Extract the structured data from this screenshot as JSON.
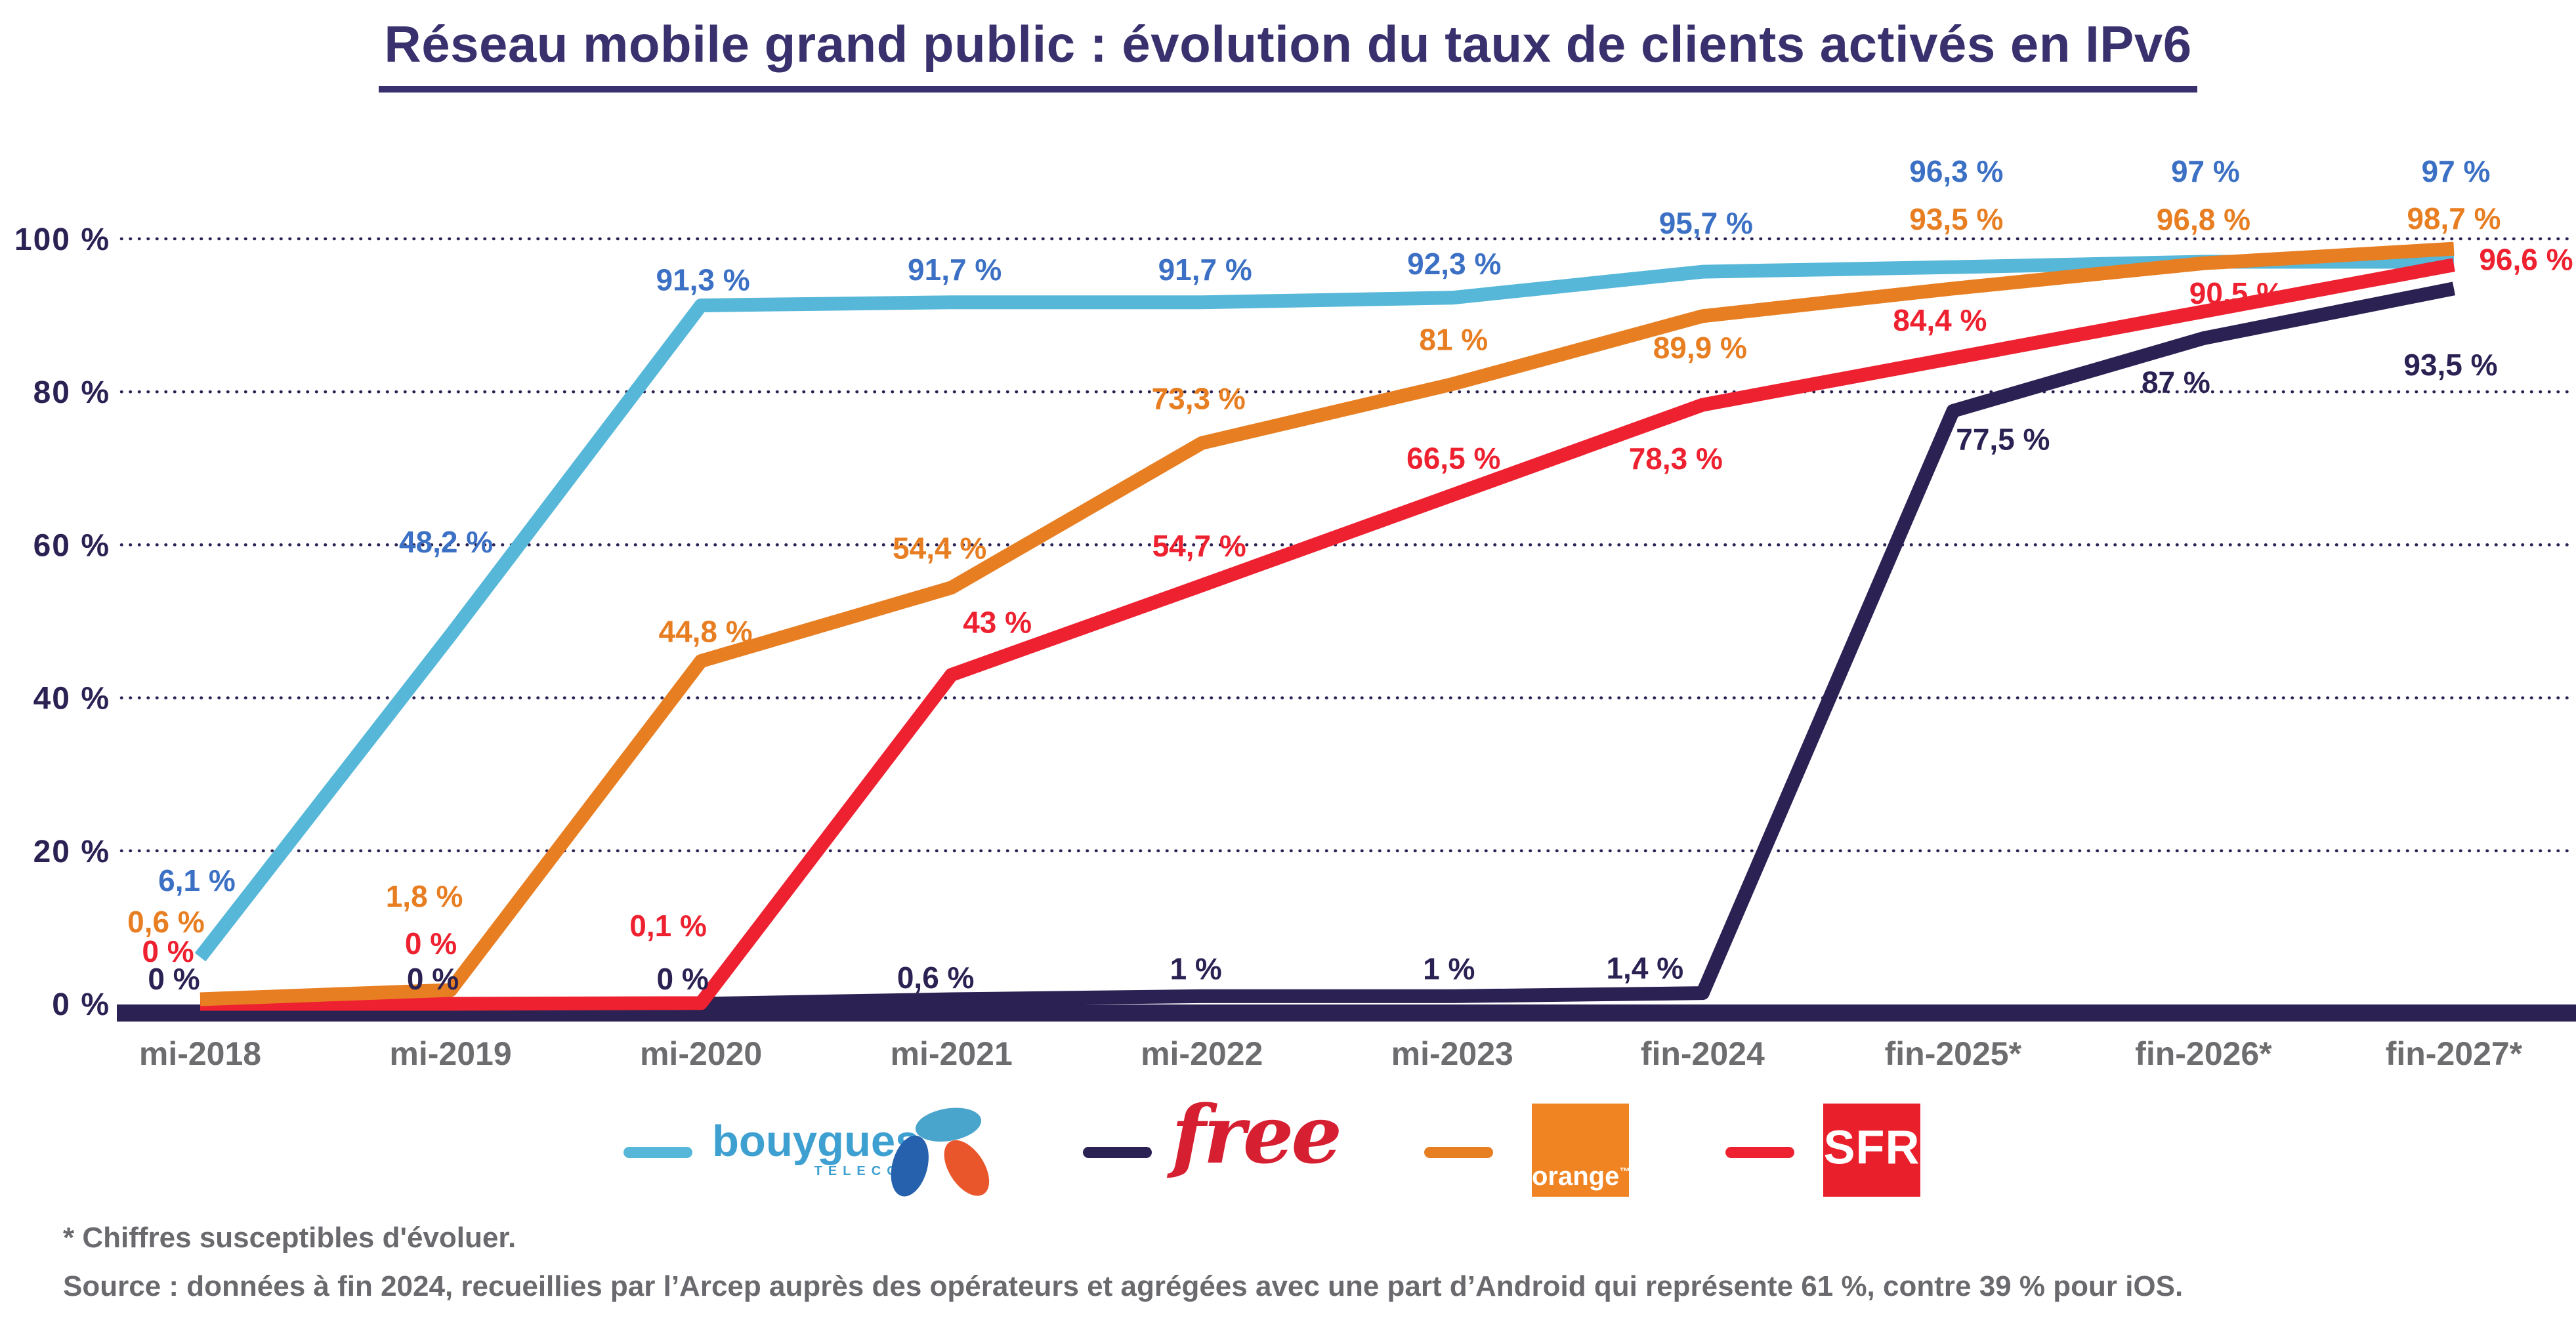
{
  "title": "Réseau mobile grand public : évolution du taux de clients activés en IPv6",
  "chart_data": {
    "type": "line",
    "title": "Réseau mobile grand public : évolution du taux de clients activés en IPv6",
    "categories": [
      "mi-2018",
      "mi-2019",
      "mi-2020",
      "mi-2021",
      "mi-2022",
      "mi-2023",
      "fin-2024",
      "fin-2025*",
      "fin-2026*",
      "fin-2027*"
    ],
    "xlabel": "",
    "ylabel": "",
    "y_axis": {
      "ylim": [
        0,
        100
      ],
      "ticks": [
        0,
        20,
        40,
        60,
        80,
        100
      ],
      "tick_labels": [
        "0 %",
        "20 %",
        "40 %",
        "60 %",
        "80 %",
        "100 %"
      ],
      "grid": "dotted-horizontal"
    },
    "legend_position": "bottom",
    "draw_order": [
      0,
      1,
      3,
      2
    ],
    "series": [
      {
        "name": "Bouygues Telecom",
        "line_color": "#56b7d8",
        "label_color": "#3b70c4",
        "values": [
          6.1,
          48.2,
          91.3,
          91.7,
          91.7,
          92.3,
          95.7,
          96.3,
          97,
          97
        ],
        "labels": [
          "6,1 %",
          "48,2 %",
          "91,3 %",
          "91,7 %",
          "91,7 %",
          "92,3 %",
          "95,7 %",
          "96,3 %",
          "97 %",
          "97 %"
        ],
        "label_offsets": [
          [
            -5,
            -117
          ],
          [
            -7,
            -142
          ],
          [
            3,
            -39
          ],
          [
            5,
            -50
          ],
          [
            5,
            -50
          ],
          [
            3,
            -52
          ],
          [
            5,
            -74
          ],
          [
            5,
            -146
          ],
          [
            3,
            -138
          ],
          [
            3,
            -138
          ]
        ]
      },
      {
        "name": "Free",
        "line_color": "#2b2153",
        "label_color": "#2b2153",
        "values": [
          0,
          0,
          0,
          0.6,
          1,
          1,
          1.4,
          77.5,
          87,
          93.5
        ],
        "labels": [
          "0 %",
          "0 %",
          "0 %",
          "0,6 %",
          "1 %",
          "1 %",
          "1,4 %",
          "77,5 %",
          "87 %",
          "93,5 %"
        ],
        "label_offsets": [
          [
            -40,
            -38
          ],
          [
            -27,
            -38
          ],
          [
            -28,
            -38
          ],
          [
            -24,
            -33
          ],
          [
            -9,
            -42
          ],
          [
            -5,
            -42
          ],
          [
            -88,
            -38
          ],
          [
            76,
            43
          ],
          [
            -42,
            67
          ],
          [
            -5,
            116
          ]
        ]
      },
      {
        "name": "Orange",
        "line_color": "#e87e22",
        "label_color": "#e87e22",
        "values": [
          0.6,
          1.8,
          44.8,
          54.4,
          73.3,
          81,
          89.9,
          93.5,
          96.8,
          98.7
        ],
        "labels": [
          "0,6 %",
          "1,8 %",
          "44,8 %",
          "54,4 %",
          "73,3 %",
          "81 %",
          "89,9 %",
          "93,5 %",
          "96,8 %",
          "98,7 %"
        ],
        "label_offsets": [
          [
            -52,
            -118
          ],
          [
            -40,
            -143
          ],
          [
            7,
            -45
          ],
          [
            -18,
            -60
          ],
          [
            -5,
            -68
          ],
          [
            2,
            -68
          ],
          [
            -4,
            48
          ],
          [
            5,
            -106
          ],
          [
            0,
            -67
          ],
          [
            0,
            -46
          ]
        ]
      },
      {
        "name": "SFR",
        "line_color": "#ee2130",
        "label_color": "#ee2130",
        "values": [
          0,
          0,
          0.1,
          43,
          54.7,
          66.5,
          78.3,
          84.4,
          90.5,
          96.6
        ],
        "labels": [
          "0 %",
          "0 %",
          "0,1 %",
          "43 %",
          "54,7 %",
          "66,5 %",
          "78,3 %",
          "84,4 %",
          "90,5 %",
          "96,6 %"
        ],
        "label_offsets": [
          [
            -49,
            -80
          ],
          [
            -30,
            -92
          ],
          [
            -50,
            -118
          ],
          [
            70,
            -80
          ],
          [
            -4,
            -60
          ],
          [
            2,
            -56
          ],
          [
            -41,
            82
          ],
          [
            -20,
            -58
          ],
          [
            50,
            -28
          ],
          [
            110,
            -8
          ]
        ]
      }
    ]
  },
  "legend": {
    "items": [
      {
        "name": "Bouygues Telecom",
        "dash_color": "#56b7d8",
        "wordmark": "bouygues",
        "sub": "TELECOM"
      },
      {
        "name": "Free",
        "dash_color": "#2b2153",
        "wordmark": "free"
      },
      {
        "name": "Orange",
        "dash_color": "#e87e22",
        "wordmark": "orange",
        "tm": "™"
      },
      {
        "name": "SFR",
        "dash_color": "#ee2130",
        "wordmark": "SFR"
      }
    ]
  },
  "footnotes": {
    "line1": "* Chiffres susceptibles d'évoluer.",
    "line2": "Source : données à fin 2024, recueillies par l’Arcep auprès des opérateurs et agrégées avec une part d’Android qui représente 61 %, contre 39 % pour iOS."
  },
  "colors": {
    "background": "#ffffff",
    "title": "#39306e",
    "axis_navy": "#2b2153",
    "grid_dot": "#2b2153",
    "x_tick_gray": "#6d6d70",
    "footnote_gray": "#6a6a6e",
    "bouygues_line": "#56b7d8",
    "bouygues_label": "#3b70c4",
    "bouygues_wordmark": "#3ea0d0",
    "bouygues_icon_top": "#4aa5cc",
    "bouygues_icon_left": "#2661ae",
    "bouygues_icon_right": "#e9562c",
    "free_navy": "#2b2153",
    "free_logo_red": "#d61f30",
    "orange_line": "#e87e22",
    "orange_square": "#f08322",
    "sfr_line": "#ee2130",
    "sfr_square": "#e9202c"
  }
}
